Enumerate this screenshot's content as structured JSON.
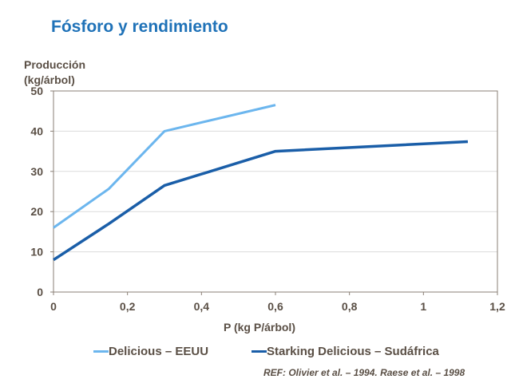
{
  "chart_data": {
    "type": "line",
    "title": "Fósforo y rendimiento",
    "ylabel": "Producción\n(kg/árbol)",
    "xlabel": "P  (kg P/árbol)",
    "xlim": [
      0,
      1.2
    ],
    "ylim": [
      0,
      50
    ],
    "xticks": [
      "0",
      "0,2",
      "0,4",
      "0,6",
      "0,8",
      "1",
      "1,2"
    ],
    "yticks": [
      "0",
      "10",
      "20",
      "30",
      "40",
      "50"
    ],
    "grid": true,
    "legend": "bottom",
    "series": [
      {
        "name": "Delicious – EEUU",
        "color": "#6cb6ee",
        "x": [
          0,
          0.15,
          0.3,
          0.6
        ],
        "y": [
          16,
          25.7,
          40,
          46.5
        ]
      },
      {
        "name": "Starking Delicious – Sudáfrica",
        "color": "#1a5ea8",
        "x": [
          0,
          0.15,
          0.3,
          0.6,
          1.12
        ],
        "y": [
          8,
          17,
          26.5,
          35,
          37.4
        ]
      }
    ],
    "note": "REF: Olivier et al. – 1994. Raese et al. – 1998"
  }
}
